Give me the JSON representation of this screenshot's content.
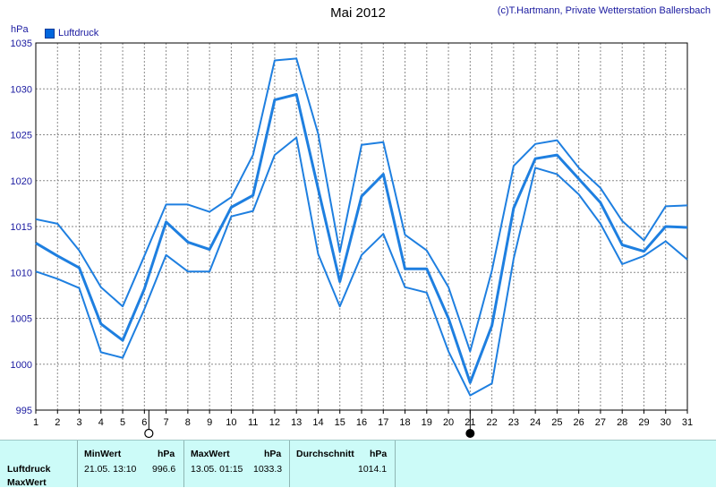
{
  "header": {
    "title": "Mai 2012",
    "copyright": "(c)T.Hartmann, Private Wetterstation Ballersbach"
  },
  "legend": {
    "label": "Luftdruck",
    "color": "#0066dd"
  },
  "chart_data": {
    "type": "line",
    "ylabel": "hPa",
    "ylim": [
      995,
      1035
    ],
    "yticks": [
      995,
      1000,
      1005,
      1010,
      1015,
      1020,
      1025,
      1030,
      1035
    ],
    "xlim": [
      1,
      31
    ],
    "grid": true,
    "legend_position": "top-left",
    "x": [
      1,
      2,
      3,
      4,
      5,
      6,
      7,
      8,
      9,
      10,
      11,
      12,
      13,
      14,
      15,
      16,
      17,
      18,
      19,
      20,
      21,
      22,
      23,
      24,
      25,
      26,
      27,
      28,
      29,
      30,
      31
    ],
    "series": [
      {
        "name": "Luftdruck",
        "role": "max",
        "color": "#1e7fe0",
        "values": [
          1015.8,
          1015.3,
          1012.4,
          1008.4,
          1006.3,
          1011.8,
          1017.4,
          1017.4,
          1016.6,
          1018.2,
          1022.8,
          1033.1,
          1033.3,
          1025.1,
          1012.2,
          1023.9,
          1024.2,
          1014.1,
          1012.4,
          1008.4,
          1001.4,
          1010.2,
          1021.6,
          1024.0,
          1024.4,
          1021.4,
          1019.2,
          1015.6,
          1013.5,
          1017.2,
          1017.3
        ]
      },
      {
        "name": "Luftdruck",
        "role": "avg",
        "color": "#1e7fe0",
        "values": [
          1013.2,
          1011.8,
          1010.5,
          1004.4,
          1002.6,
          1008.2,
          1015.5,
          1013.3,
          1012.5,
          1017.1,
          1018.4,
          1028.8,
          1029.4,
          1019.1,
          1009.0,
          1018.3,
          1020.7,
          1010.4,
          1010.4,
          1005.0,
          998.0,
          1004.2,
          1017.0,
          1022.4,
          1022.8,
          1020.2,
          1017.6,
          1013.0,
          1012.3,
          1015.0,
          1014.9
        ]
      },
      {
        "name": "Luftdruck",
        "role": "min",
        "color": "#1e7fe0",
        "values": [
          1010.1,
          1009.3,
          1008.3,
          1001.3,
          1000.7,
          1006.0,
          1011.9,
          1010.1,
          1010.1,
          1016.1,
          1016.7,
          1022.8,
          1024.7,
          1012.0,
          1006.3,
          1011.9,
          1014.2,
          1008.4,
          1007.8,
          1001.4,
          996.6,
          997.9,
          1011.5,
          1021.4,
          1020.7,
          1018.5,
          1015.3,
          1010.9,
          1011.8,
          1013.4,
          1011.4
        ]
      }
    ],
    "markers": [
      {
        "x": 6,
        "symbol": "open-circle"
      },
      {
        "x": 21,
        "symbol": "filled-circle"
      }
    ]
  },
  "stats": {
    "row1_label": "Luftdruck",
    "row2_label": "MaxWert",
    "min_header": "MinWert",
    "min_unit": "hPa",
    "min_datetime": "21.05.  13:10",
    "min_value": "996.6",
    "max_header": "MaxWert",
    "max_unit": "hPa",
    "max_datetime": "13.05.  01:15",
    "max_value": "1033.3",
    "avg_header": "Durchschnitt",
    "avg_unit": "hPa",
    "avg_value": "1014.1"
  }
}
